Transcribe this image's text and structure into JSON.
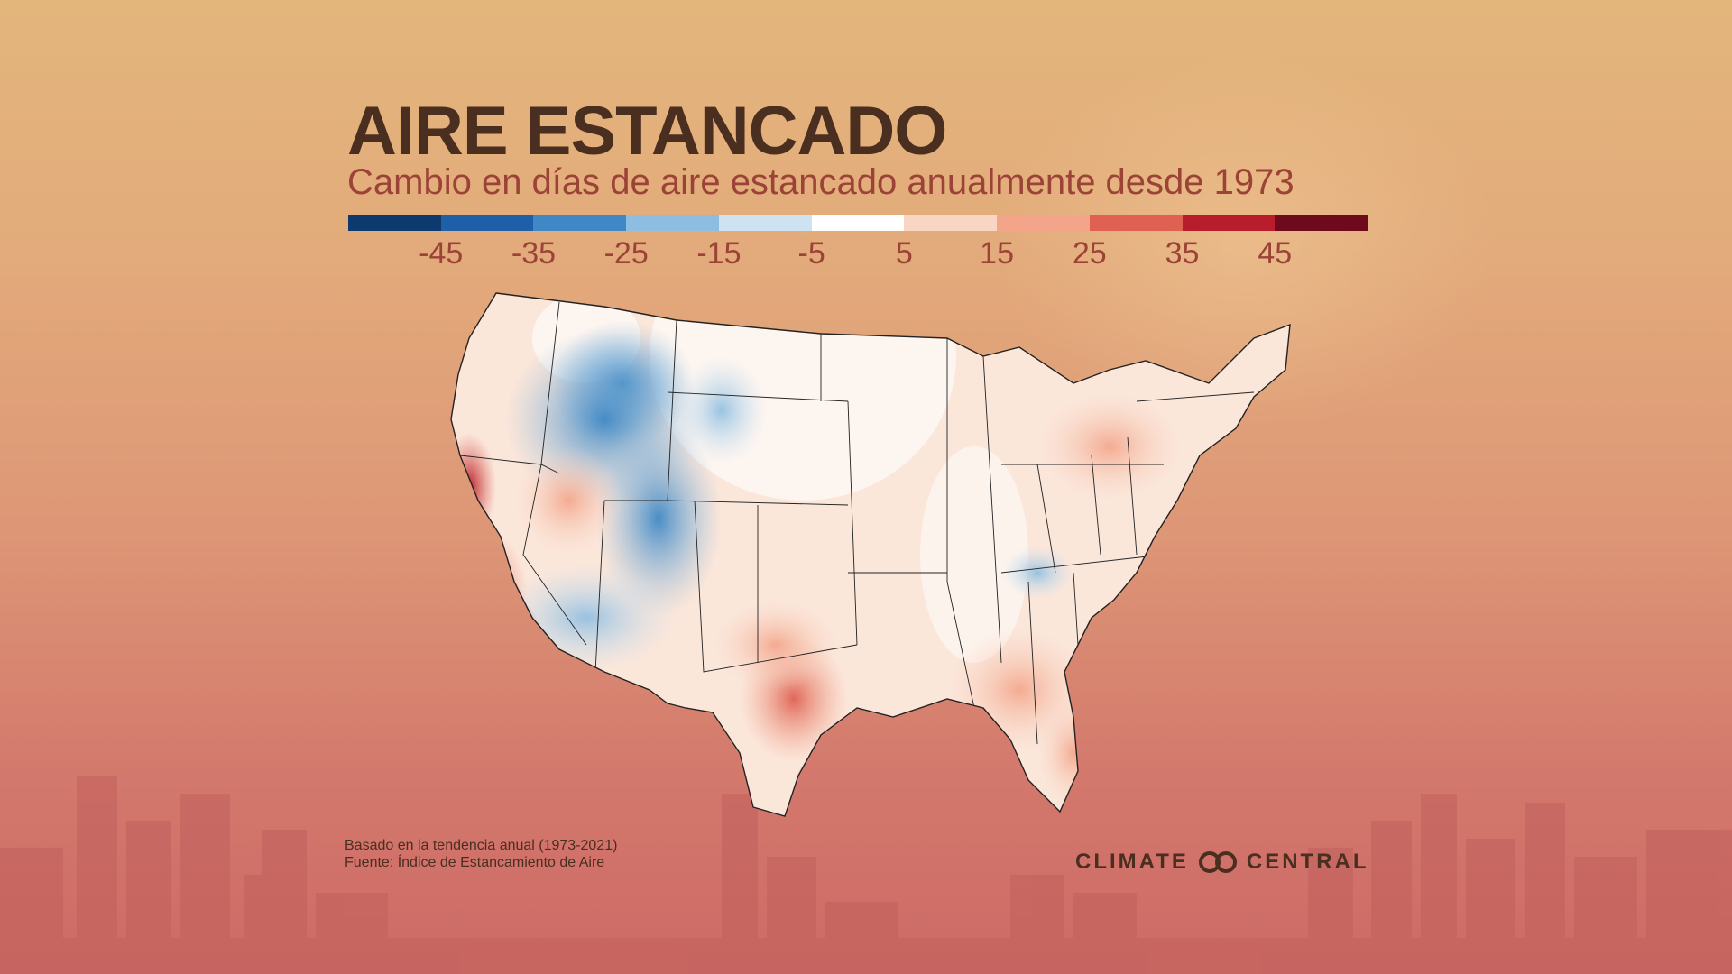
{
  "header": {
    "title": "AIRE ESTANCADO",
    "subtitle": "Cambio en días de aire estancado anualmente desde 1973"
  },
  "legend": {
    "colors": [
      "#0d3a6e",
      "#1f5fa8",
      "#3f88c5",
      "#8dbde0",
      "#cde3f2",
      "#ffffff",
      "#f9d6c4",
      "#f3a489",
      "#de6152",
      "#b81d2c",
      "#6e0a1e"
    ],
    "ticks": [
      "-45",
      "-35",
      "-25",
      "-15",
      "-5",
      "5",
      "15",
      "25",
      "35",
      "45"
    ]
  },
  "notes": {
    "basis": "Basado en la tendencia anual (1973-2021)",
    "source": "Fuente: Índice de Estancamiento de Aire"
  },
  "branding": {
    "left": "CLIMATE",
    "right": "CENTRAL"
  }
}
